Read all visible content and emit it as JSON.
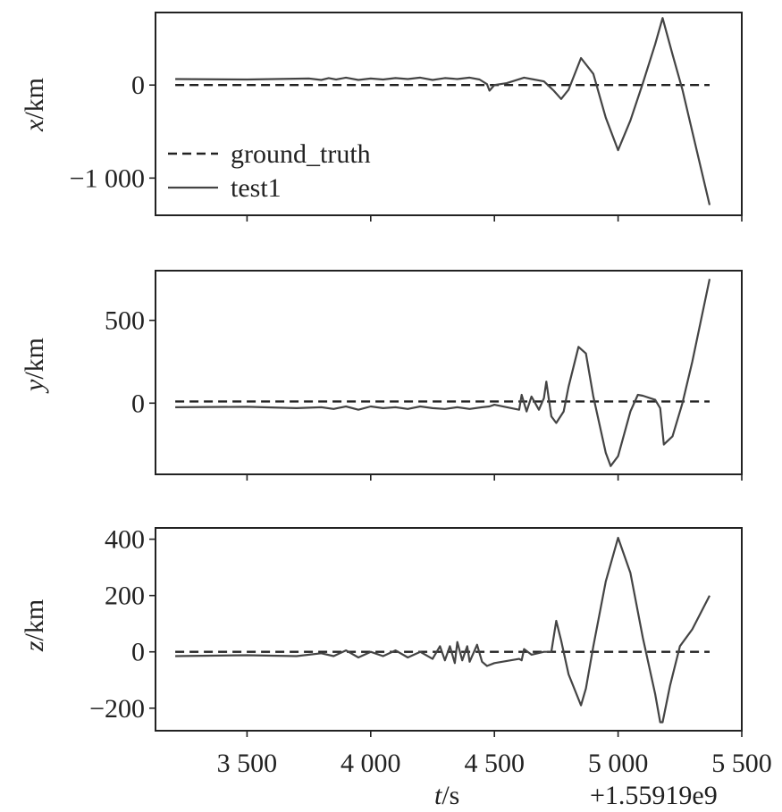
{
  "chart_data": [
    {
      "type": "line",
      "panel": "x",
      "ylabel_var": "x",
      "ylabel_unit": "/km",
      "xlim": [
        3130,
        5500
      ],
      "ylim": [
        -1400,
        780
      ],
      "yticks": [
        -1000,
        0
      ],
      "ytick_labels": [
        "−1 000",
        "0"
      ],
      "legend": {
        "placement": "lower-left",
        "entries": [
          "ground_truth",
          "test1"
        ]
      },
      "series": [
        {
          "name": "ground_truth",
          "style": "dashed",
          "x": [
            3210,
            5370
          ],
          "y": [
            0,
            0
          ]
        },
        {
          "name": "test1",
          "style": "solid",
          "x": [
            3210,
            3500,
            3750,
            3800,
            3830,
            3860,
            3900,
            3950,
            4000,
            4050,
            4100,
            4150,
            4200,
            4250,
            4300,
            4350,
            4400,
            4440,
            4470,
            4480,
            4500,
            4550,
            4620,
            4660,
            4700,
            4740,
            4770,
            4800,
            4850,
            4900,
            4950,
            5000,
            5050,
            5100,
            5150,
            5180,
            5220,
            5260,
            5300,
            5370
          ],
          "y": [
            65,
            60,
            70,
            55,
            75,
            60,
            80,
            55,
            70,
            60,
            75,
            65,
            80,
            55,
            75,
            65,
            80,
            60,
            10,
            -60,
            0,
            20,
            80,
            60,
            40,
            -60,
            -150,
            -50,
            290,
            120,
            -350,
            -700,
            -380,
            20,
            440,
            720,
            330,
            -50,
            -500,
            -1290
          ]
        }
      ]
    },
    {
      "type": "line",
      "panel": "y",
      "ylabel_var": "y",
      "ylabel_unit": "/km",
      "xlim": [
        3130,
        5500
      ],
      "ylim": [
        -430,
        800
      ],
      "yticks": [
        0,
        500
      ],
      "ytick_labels": [
        "0",
        "500"
      ],
      "series": [
        {
          "name": "ground_truth",
          "style": "dashed",
          "x": [
            3210,
            5370
          ],
          "y": [
            10,
            10
          ]
        },
        {
          "name": "test1",
          "style": "solid",
          "x": [
            3210,
            3500,
            3700,
            3800,
            3850,
            3900,
            3950,
            4000,
            4050,
            4100,
            4150,
            4200,
            4250,
            4300,
            4350,
            4400,
            4450,
            4480,
            4500,
            4600,
            4610,
            4630,
            4650,
            4680,
            4700,
            4710,
            4730,
            4750,
            4780,
            4800,
            4840,
            4870,
            4900,
            4950,
            4970,
            5000,
            5050,
            5080,
            5100,
            5150,
            5170,
            5185,
            5220,
            5260,
            5300,
            5370
          ],
          "y": [
            -25,
            -22,
            -30,
            -25,
            -35,
            -20,
            -40,
            -20,
            -30,
            -25,
            -35,
            -20,
            -30,
            -35,
            -25,
            -35,
            -25,
            -20,
            -10,
            -40,
            50,
            -50,
            40,
            -40,
            30,
            130,
            -80,
            -120,
            -50,
            100,
            340,
            300,
            40,
            -300,
            -380,
            -320,
            -50,
            50,
            45,
            20,
            -30,
            -250,
            -200,
            0,
            250,
            750
          ]
        }
      ]
    },
    {
      "type": "line",
      "panel": "z",
      "ylabel_var": "z",
      "ylabel_unit": "/km",
      "xlim": [
        3130,
        5500
      ],
      "ylim": [
        -280,
        440
      ],
      "yticks": [
        -200,
        0,
        200,
        400
      ],
      "ytick_labels": [
        "−200",
        "0",
        "200",
        "400"
      ],
      "xticks": [
        3500,
        4000,
        4500,
        5000,
        5500
      ],
      "xtick_labels": [
        "3 500",
        "4 000",
        "4 500",
        "5 000",
        "5 500"
      ],
      "xlabel_var": "t",
      "xlabel_unit": "/s",
      "x_offset_text": "+1.55919e9",
      "series": [
        {
          "name": "ground_truth",
          "style": "dashed",
          "x": [
            3210,
            5370
          ],
          "y": [
            0,
            0
          ]
        },
        {
          "name": "test1",
          "style": "solid",
          "x": [
            3210,
            3500,
            3700,
            3800,
            3850,
            3900,
            3950,
            4000,
            4050,
            4100,
            4150,
            4200,
            4250,
            4280,
            4300,
            4320,
            4340,
            4350,
            4370,
            4390,
            4400,
            4430,
            4450,
            4470,
            4500,
            4600,
            4610,
            4620,
            4650,
            4700,
            4730,
            4750,
            4770,
            4800,
            4850,
            4870,
            4900,
            4950,
            5000,
            5050,
            5100,
            5150,
            5170,
            5180,
            5210,
            5250,
            5300,
            5370
          ],
          "y": [
            -15,
            -12,
            -15,
            -5,
            -15,
            5,
            -20,
            0,
            -15,
            5,
            -20,
            0,
            -25,
            20,
            -30,
            20,
            -40,
            35,
            -30,
            20,
            -35,
            25,
            -35,
            -50,
            -40,
            -25,
            -30,
            10,
            -10,
            0,
            0,
            110,
            40,
            -80,
            -190,
            -130,
            20,
            250,
            405,
            280,
            50,
            -150,
            -250,
            -250,
            -120,
            20,
            80,
            200
          ]
        }
      ]
    }
  ]
}
